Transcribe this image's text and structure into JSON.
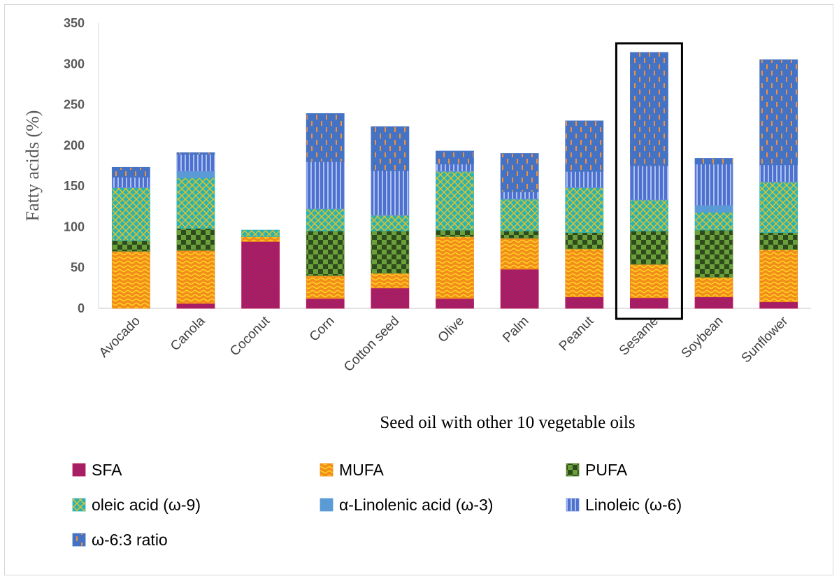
{
  "chart_data": {
    "type": "bar",
    "stacked": true,
    "categories": [
      "Avocado",
      "Canola",
      "Coconut",
      "Corn",
      "Cotton seed",
      "Olive",
      "Palm",
      "Peanut",
      "Sesame",
      "Soybean",
      "Sunflower"
    ],
    "series": [
      {
        "name": "SFA",
        "values": [
          0,
          6,
          82,
          12,
          25,
          12,
          48,
          14,
          13,
          14,
          8
        ],
        "color": "#c0185a"
      },
      {
        "name": "MUFA",
        "values": [
          70,
          65,
          6,
          28,
          18,
          76,
          38,
          59,
          41,
          24,
          64
        ],
        "color": "#f28c1c"
      },
      {
        "name": "PUFA",
        "values": [
          13,
          27,
          0,
          55,
          52,
          8,
          9,
          20,
          41,
          58,
          21
        ],
        "color": "#5b8a32"
      },
      {
        "name": "oleic acid (ω-9)",
        "values": [
          65,
          62,
          8,
          27,
          19,
          72,
          39,
          55,
          38,
          22,
          62
        ],
        "color": "#2bb3b3"
      },
      {
        "name": "α-Linolenic acid  (ω-3)",
        "values": [
          0,
          8,
          0,
          0,
          0,
          0,
          0,
          0,
          0,
          8,
          0
        ],
        "color": "#5b9bd5"
      },
      {
        "name": "Linoleic (ω-6)",
        "values": [
          13,
          21,
          0,
          58,
          55,
          9,
          9,
          20,
          42,
          51,
          21
        ],
        "color": "#6d8ee0"
      },
      {
        "name": "ω-6:3 ratio",
        "values": [
          12,
          2,
          0,
          59,
          54,
          16,
          47,
          62,
          139,
          7,
          129
        ],
        "color": "#4472c4"
      }
    ],
    "title": "",
    "xlabel": "Seed oil with other 10 vegetable oils",
    "ylabel": "Fatty  acids (%)",
    "ylim": [
      0,
      350
    ],
    "yticks": [
      0,
      50,
      100,
      150,
      200,
      250,
      300,
      350
    ],
    "highlight": "Sesame",
    "grid": false,
    "legend_position": "bottom"
  }
}
